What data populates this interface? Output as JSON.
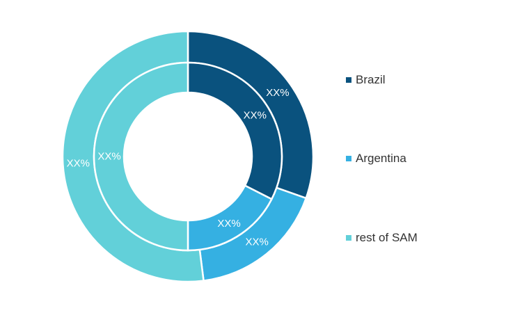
{
  "chart_data": {
    "type": "pie",
    "variant": "nested-donut",
    "categories": [
      "Brazil",
      "Argentina",
      "rest of SAM"
    ],
    "colors": [
      "#0a527e",
      "#35b0e2",
      "#62d0d9"
    ],
    "series": [
      {
        "ring": "outer",
        "values": [
          30.4,
          17.6,
          52.0
        ],
        "labels": [
          "XX%",
          "XX%",
          "XX%"
        ]
      },
      {
        "ring": "inner",
        "values": [
          32.5,
          17.5,
          50.0
        ],
        "labels": [
          "XX%",
          "XX%",
          "XX%"
        ]
      }
    ],
    "legend": {
      "position": "right",
      "items": [
        {
          "label": "Brazil",
          "color": "#0a527e"
        },
        {
          "label": "Argentina",
          "color": "#35b0e2"
        },
        {
          "label": "rest of SAM",
          "color": "#62d0d9"
        }
      ]
    }
  }
}
